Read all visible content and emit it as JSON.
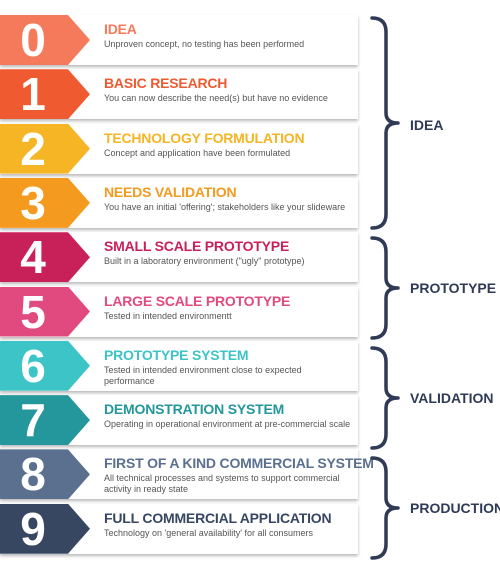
{
  "levels": [
    {
      "number": "0",
      "title": "IDEA",
      "description": "Unproven concept, no testing has been performed",
      "color": "#f57a5c"
    },
    {
      "number": "1",
      "title": "BASIC RESEARCH",
      "description": "You can now describe the need(s) but have no evidence",
      "color": "#ef5a30"
    },
    {
      "number": "2",
      "title": "TECHNOLOGY FORMULATION",
      "description": "Concept and application have been formulated",
      "color": "#f5b525"
    },
    {
      "number": "3",
      "title": "NEEDS VALIDATION",
      "description": "You have an initial 'offering'; stakeholders like your slideware",
      "color": "#f39a1f"
    },
    {
      "number": "4",
      "title": "SMALL SCALE PROTOTYPE",
      "description": "Built in a laboratory environment (\"ugly\" prototype)",
      "color": "#c8215a"
    },
    {
      "number": "5",
      "title": "LARGE SCALE PROTOTYPE",
      "description": "Tested in intended environmentt",
      "color": "#e04a7e"
    },
    {
      "number": "6",
      "title": "PROTOTYPE SYSTEM",
      "description": "Tested in intended environment close to expected performance",
      "color": "#3cc4c6"
    },
    {
      "number": "7",
      "title": "DEMONSTRATION SYSTEM",
      "description": "Operating in operational environment at pre-commercial scale",
      "color": "#24979c"
    },
    {
      "number": "8",
      "title": "FIRST OF A KIND COMMERCIAL SYSTEM",
      "description": "All technical processes and systems to support commercial activity in ready state",
      "color": "#5b6f8f"
    },
    {
      "number": "9",
      "title": "FULL COMMERCIAL APPLICATION",
      "description": "Technology on 'general availability' for all consumers",
      "color": "#374661"
    }
  ],
  "groups": [
    {
      "label": "IDEA"
    },
    {
      "label": "PROTOTYPE"
    },
    {
      "label": "VALIDATION"
    },
    {
      "label": "PRODUCTION"
    }
  ],
  "colors": {
    "brace": "#2f3a55",
    "description_text": "#555555"
  }
}
